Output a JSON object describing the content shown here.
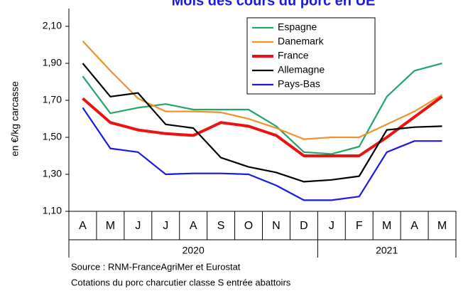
{
  "chart_data": {
    "type": "line",
    "title": "Mois des cours du porc en UE",
    "y_label": "en €/kg carcasse",
    "categories": [
      "A",
      "M",
      "J",
      "J",
      "A",
      "S",
      "O",
      "N",
      "D",
      "J",
      "F",
      "M",
      "A",
      "M"
    ],
    "years": [
      "2020",
      "2020",
      "2020",
      "2020",
      "2020",
      "2020",
      "2020",
      "2020",
      "2020",
      "2021",
      "2021",
      "2021",
      "2021",
      "2021"
    ],
    "ylim": [
      1.1,
      2.1
    ],
    "yticks": [
      {
        "value": 1.1,
        "label": "1,10"
      },
      {
        "value": 1.3,
        "label": "1,30"
      },
      {
        "value": 1.5,
        "label": "1,50"
      },
      {
        "value": 1.7,
        "label": "1,70"
      },
      {
        "value": 1.9,
        "label": "1,90"
      },
      {
        "value": 2.1,
        "label": "2,10"
      }
    ],
    "series": [
      {
        "name": "Espagne",
        "color": "#22a66a",
        "values": [
          1.83,
          1.63,
          1.66,
          1.68,
          1.65,
          1.65,
          1.65,
          1.56,
          1.42,
          1.41,
          1.45,
          1.72,
          1.86,
          1.9
        ]
      },
      {
        "name": "Danemark",
        "color": "#f0922a",
        "values": [
          2.02,
          1.86,
          1.71,
          1.64,
          1.64,
          1.635,
          1.6,
          1.55,
          1.49,
          1.5,
          1.5,
          1.57,
          1.64,
          1.73
        ]
      },
      {
        "name": "France",
        "color": "#ee1111",
        "values": [
          1.71,
          1.58,
          1.54,
          1.52,
          1.51,
          1.58,
          1.56,
          1.51,
          1.4,
          1.4,
          1.4,
          1.5,
          1.61,
          1.72
        ]
      },
      {
        "name": "Allemagne",
        "color": "#000000",
        "values": [
          1.9,
          1.72,
          1.74,
          1.57,
          1.55,
          1.39,
          1.34,
          1.31,
          1.26,
          1.27,
          1.29,
          1.54,
          1.555,
          1.56
        ]
      },
      {
        "name": "Pays-Bas",
        "color": "#1a1ae6",
        "values": [
          1.66,
          1.44,
          1.42,
          1.3,
          1.305,
          1.305,
          1.3,
          1.24,
          1.16,
          1.16,
          1.18,
          1.42,
          1.48,
          1.48
        ]
      }
    ],
    "notes": [
      "Source : RNM-FranceAgriMer et Eurostat",
      "Cotations du porc charcutier classe S entrée abattoirs"
    ]
  }
}
